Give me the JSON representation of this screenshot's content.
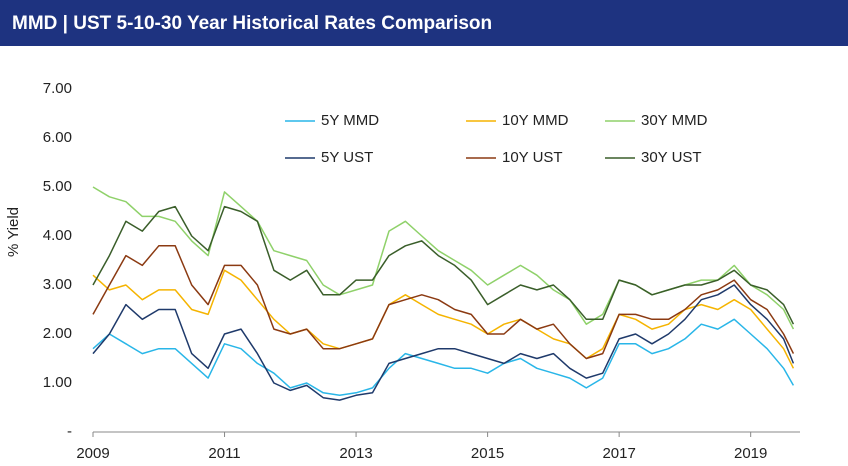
{
  "chart_data": {
    "type": "line",
    "title": "MMD | UST 5-10-30 Year Historical Rates Comparison",
    "ylabel": "% Yield",
    "x": [
      2009,
      2009.25,
      2009.5,
      2009.75,
      2010,
      2010.25,
      2010.5,
      2010.75,
      2011,
      2011.25,
      2011.5,
      2011.75,
      2012,
      2012.25,
      2012.5,
      2012.75,
      2013,
      2013.25,
      2013.5,
      2013.75,
      2014,
      2014.25,
      2014.5,
      2014.75,
      2015,
      2015.25,
      2015.5,
      2015.75,
      2016,
      2016.25,
      2016.5,
      2016.75,
      2017,
      2017.25,
      2017.5,
      2017.75,
      2018,
      2018.25,
      2018.5,
      2018.75,
      2019,
      2019.25,
      2019.5,
      2019.65
    ],
    "xlim": [
      2009,
      2019.75
    ],
    "xticks": [
      2009,
      2011,
      2013,
      2015,
      2017,
      2019
    ],
    "ylim": [
      0,
      7
    ],
    "yticks": [
      {
        "value": 0,
        "label": "-"
      },
      {
        "value": 1,
        "label": "1.00"
      },
      {
        "value": 2,
        "label": "2.00"
      },
      {
        "value": 3,
        "label": "3.00"
      },
      {
        "value": 4,
        "label": "4.00"
      },
      {
        "value": 5,
        "label": "5.00"
      },
      {
        "value": 6,
        "label": "6.00"
      },
      {
        "value": 7,
        "label": "7.00"
      }
    ],
    "grid": false,
    "series": [
      {
        "name": "5Y MMD",
        "color": "#29b6e8",
        "values": [
          1.7,
          2.0,
          1.8,
          1.6,
          1.7,
          1.7,
          1.4,
          1.1,
          1.8,
          1.7,
          1.4,
          1.2,
          0.9,
          1.0,
          0.8,
          0.75,
          0.8,
          0.9,
          1.3,
          1.6,
          1.5,
          1.4,
          1.3,
          1.3,
          1.2,
          1.4,
          1.5,
          1.3,
          1.2,
          1.1,
          0.9,
          1.1,
          1.8,
          1.8,
          1.6,
          1.7,
          1.9,
          2.2,
          2.1,
          2.3,
          2.0,
          1.7,
          1.3,
          0.95
        ]
      },
      {
        "name": "10Y MMD",
        "color": "#f5b400",
        "values": [
          3.2,
          2.9,
          3.0,
          2.7,
          2.9,
          2.9,
          2.5,
          2.4,
          3.3,
          3.1,
          2.7,
          2.3,
          2.0,
          2.1,
          1.8,
          1.7,
          1.8,
          1.9,
          2.6,
          2.8,
          2.6,
          2.4,
          2.3,
          2.2,
          2.0,
          2.2,
          2.3,
          2.1,
          1.9,
          1.8,
          1.5,
          1.7,
          2.4,
          2.3,
          2.1,
          2.2,
          2.5,
          2.6,
          2.5,
          2.7,
          2.5,
          2.1,
          1.7,
          1.3
        ]
      },
      {
        "name": "30Y MMD",
        "color": "#8fd16a",
        "values": [
          5.0,
          4.8,
          4.7,
          4.4,
          4.4,
          4.3,
          3.9,
          3.6,
          4.9,
          4.6,
          4.3,
          3.7,
          3.6,
          3.5,
          3.0,
          2.8,
          2.9,
          3.0,
          4.1,
          4.3,
          4.0,
          3.7,
          3.5,
          3.3,
          3.0,
          3.2,
          3.4,
          3.2,
          2.9,
          2.7,
          2.2,
          2.4,
          3.1,
          3.0,
          2.8,
          2.9,
          3.0,
          3.1,
          3.1,
          3.4,
          3.0,
          2.8,
          2.5,
          2.1
        ]
      },
      {
        "name": "5Y UST",
        "color": "#1f3a6b",
        "values": [
          1.6,
          2.0,
          2.6,
          2.3,
          2.5,
          2.5,
          1.6,
          1.3,
          2.0,
          2.1,
          1.6,
          1.0,
          0.85,
          0.95,
          0.7,
          0.65,
          0.75,
          0.8,
          1.4,
          1.5,
          1.6,
          1.7,
          1.7,
          1.6,
          1.5,
          1.4,
          1.6,
          1.5,
          1.6,
          1.3,
          1.1,
          1.2,
          1.9,
          2.0,
          1.8,
          2.0,
          2.3,
          2.7,
          2.8,
          3.0,
          2.6,
          2.3,
          1.9,
          1.4
        ]
      },
      {
        "name": "10Y UST",
        "color": "#8b3a12",
        "values": [
          2.4,
          3.0,
          3.6,
          3.4,
          3.8,
          3.8,
          3.0,
          2.6,
          3.4,
          3.4,
          3.0,
          2.1,
          2.0,
          2.1,
          1.7,
          1.7,
          1.8,
          1.9,
          2.6,
          2.7,
          2.8,
          2.7,
          2.5,
          2.4,
          2.0,
          2.0,
          2.3,
          2.1,
          2.2,
          1.8,
          1.5,
          1.6,
          2.4,
          2.4,
          2.3,
          2.3,
          2.5,
          2.8,
          2.9,
          3.1,
          2.7,
          2.5,
          2.0,
          1.6
        ]
      },
      {
        "name": "30Y UST",
        "color": "#3a5e2a",
        "values": [
          3.0,
          3.6,
          4.3,
          4.1,
          4.5,
          4.6,
          4.0,
          3.7,
          4.6,
          4.5,
          4.3,
          3.3,
          3.1,
          3.3,
          2.8,
          2.8,
          3.1,
          3.1,
          3.6,
          3.8,
          3.9,
          3.6,
          3.4,
          3.1,
          2.6,
          2.8,
          3.0,
          2.9,
          3.0,
          2.7,
          2.3,
          2.3,
          3.1,
          3.0,
          2.8,
          2.9,
          3.0,
          3.0,
          3.1,
          3.3,
          3.0,
          2.9,
          2.6,
          2.2
        ]
      }
    ]
  }
}
